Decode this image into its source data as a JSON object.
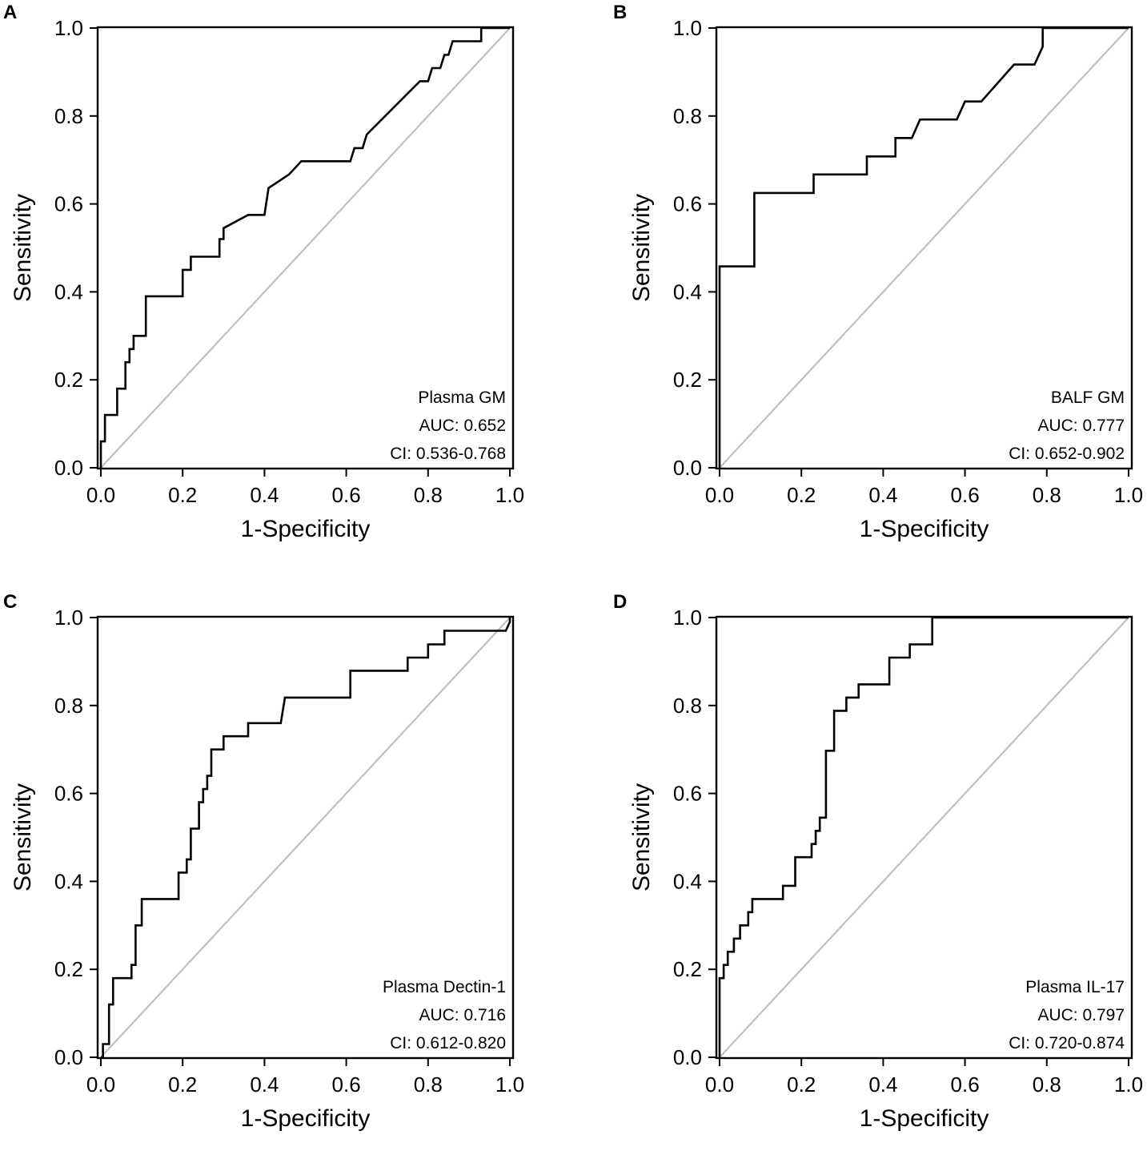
{
  "chart_data": [
    {
      "type": "line",
      "panel_label": "A",
      "xlabel": "1-Specificity",
      "ylabel": "Sensitivity",
      "xlim": [
        0,
        1
      ],
      "ylim": [
        0,
        1
      ],
      "xticks": [
        "0.0",
        "0.2",
        "0.4",
        "0.6",
        "0.8",
        "1.0"
      ],
      "yticks": [
        "0.0",
        "0.2",
        "0.4",
        "0.6",
        "0.8",
        "1.0"
      ],
      "annotation": [
        "Plasma GM",
        "AUC: 0.652",
        "CI: 0.536-0.768"
      ],
      "reference_line": {
        "x": [
          0,
          1
        ],
        "y": [
          0,
          1
        ],
        "color": "#c0c0c0"
      },
      "series": [
        {
          "name": "Plasma GM",
          "color": "#000000",
          "x": [
            0,
            0,
            0.01,
            0.01,
            0.04,
            0.04,
            0.06,
            0.06,
            0.07,
            0.07,
            0.08,
            0.08,
            0.11,
            0.11,
            0.2,
            0.2,
            0.22,
            0.22,
            0.29,
            0.29,
            0.3,
            0.3,
            0.36,
            0.4,
            0.41,
            0.46,
            0.49,
            0.61,
            0.62,
            0.64,
            0.65,
            0.78,
            0.8,
            0.81,
            0.83,
            0.84,
            0.85,
            0.86,
            0.93,
            0.93,
            1.0
          ],
          "y": [
            0,
            0.06,
            0.06,
            0.12,
            0.12,
            0.18,
            0.18,
            0.24,
            0.24,
            0.27,
            0.27,
            0.3,
            0.3,
            0.39,
            0.39,
            0.45,
            0.45,
            0.48,
            0.48,
            0.52,
            0.52,
            0.545,
            0.575,
            0.575,
            0.636,
            0.667,
            0.697,
            0.697,
            0.727,
            0.727,
            0.758,
            0.879,
            0.879,
            0.909,
            0.909,
            0.939,
            0.939,
            0.97,
            0.97,
            1.0,
            1.0
          ]
        }
      ]
    },
    {
      "type": "line",
      "panel_label": "B",
      "xlabel": "1-Specificity",
      "ylabel": "Sensitivity",
      "xlim": [
        0,
        1
      ],
      "ylim": [
        0,
        1
      ],
      "xticks": [
        "0.0",
        "0.2",
        "0.4",
        "0.6",
        "0.8",
        "1.0"
      ],
      "yticks": [
        "0.0",
        "0.2",
        "0.4",
        "0.6",
        "0.8",
        "1.0"
      ],
      "annotation": [
        "BALF GM",
        "AUC: 0.777",
        "CI: 0.652-0.902"
      ],
      "reference_line": {
        "x": [
          0,
          1
        ],
        "y": [
          0,
          1
        ],
        "color": "#c0c0c0"
      },
      "series": [
        {
          "name": "BALF GM",
          "color": "#000000",
          "x": [
            0,
            0,
            0.085,
            0.085,
            0.23,
            0.23,
            0.36,
            0.36,
            0.43,
            0.43,
            0.47,
            0.49,
            0.58,
            0.6,
            0.64,
            0.72,
            0.77,
            0.79,
            0.79,
            1.0
          ],
          "y": [
            0,
            0.458,
            0.458,
            0.625,
            0.625,
            0.667,
            0.667,
            0.708,
            0.708,
            0.75,
            0.75,
            0.792,
            0.792,
            0.833,
            0.833,
            0.917,
            0.917,
            0.958,
            1.0,
            1.0
          ]
        }
      ]
    },
    {
      "type": "line",
      "panel_label": "C",
      "xlabel": "1-Specificity",
      "ylabel": "Sensitivity",
      "xlim": [
        0,
        1
      ],
      "ylim": [
        0,
        1
      ],
      "xticks": [
        "0.0",
        "0.2",
        "0.4",
        "0.6",
        "0.8",
        "1.0"
      ],
      "yticks": [
        "0.0",
        "0.2",
        "0.4",
        "0.6",
        "0.8",
        "1.0"
      ],
      "annotation": [
        "Plasma Dectin-1",
        "AUC: 0.716",
        "CI: 0.612-0.820"
      ],
      "reference_line": {
        "x": [
          0,
          1
        ],
        "y": [
          0,
          1
        ],
        "color": "#c0c0c0"
      },
      "series": [
        {
          "name": "Plasma Dectin-1",
          "color": "#000000",
          "x": [
            0,
            0.005,
            0.005,
            0.02,
            0.02,
            0.03,
            0.03,
            0.075,
            0.075,
            0.085,
            0.085,
            0.1,
            0.1,
            0.19,
            0.19,
            0.21,
            0.21,
            0.22,
            0.22,
            0.24,
            0.24,
            0.25,
            0.25,
            0.26,
            0.26,
            0.27,
            0.27,
            0.3,
            0.3,
            0.36,
            0.36,
            0.44,
            0.45,
            0.61,
            0.61,
            0.75,
            0.75,
            0.8,
            0.8,
            0.84,
            0.84,
            0.99,
            1.0,
            1.0
          ],
          "y": [
            0,
            0,
            0.03,
            0.03,
            0.12,
            0.12,
            0.18,
            0.18,
            0.21,
            0.21,
            0.3,
            0.3,
            0.36,
            0.36,
            0.42,
            0.42,
            0.45,
            0.45,
            0.52,
            0.52,
            0.58,
            0.58,
            0.61,
            0.61,
            0.64,
            0.64,
            0.7,
            0.7,
            0.73,
            0.73,
            0.76,
            0.76,
            0.818,
            0.818,
            0.879,
            0.879,
            0.909,
            0.909,
            0.939,
            0.939,
            0.97,
            0.97,
            0.99,
            1.0
          ]
        }
      ]
    },
    {
      "type": "line",
      "panel_label": "D",
      "xlabel": "1-Specificity",
      "ylabel": "Sensitivity",
      "xlim": [
        0,
        1
      ],
      "ylim": [
        0,
        1
      ],
      "xticks": [
        "0.0",
        "0.2",
        "0.4",
        "0.6",
        "0.8",
        "1.0"
      ],
      "yticks": [
        "0.0",
        "0.2",
        "0.4",
        "0.6",
        "0.8",
        "1.0"
      ],
      "annotation": [
        "Plasma IL-17",
        "AUC: 0.797",
        "CI: 0.720-0.874"
      ],
      "reference_line": {
        "x": [
          0,
          1
        ],
        "y": [
          0,
          1
        ],
        "color": "#c0c0c0"
      },
      "series": [
        {
          "name": "Plasma IL-17",
          "color": "#000000",
          "x": [
            0,
            0,
            0.01,
            0.01,
            0.02,
            0.02,
            0.035,
            0.035,
            0.05,
            0.05,
            0.07,
            0.07,
            0.08,
            0.08,
            0.095,
            0.095,
            0.155,
            0.155,
            0.185,
            0.185,
            0.225,
            0.225,
            0.235,
            0.235,
            0.245,
            0.245,
            0.26,
            0.26,
            0.28,
            0.28,
            0.31,
            0.31,
            0.34,
            0.34,
            0.415,
            0.415,
            0.465,
            0.465,
            0.52,
            0.52,
            1.0
          ],
          "y": [
            0,
            0.18,
            0.18,
            0.21,
            0.21,
            0.24,
            0.24,
            0.27,
            0.27,
            0.3,
            0.3,
            0.33,
            0.33,
            0.36,
            0.36,
            0.36,
            0.36,
            0.39,
            0.39,
            0.455,
            0.455,
            0.485,
            0.485,
            0.515,
            0.515,
            0.545,
            0.545,
            0.697,
            0.697,
            0.788,
            0.788,
            0.818,
            0.818,
            0.848,
            0.848,
            0.909,
            0.909,
            0.939,
            0.939,
            1.0,
            1.0
          ]
        }
      ]
    }
  ]
}
